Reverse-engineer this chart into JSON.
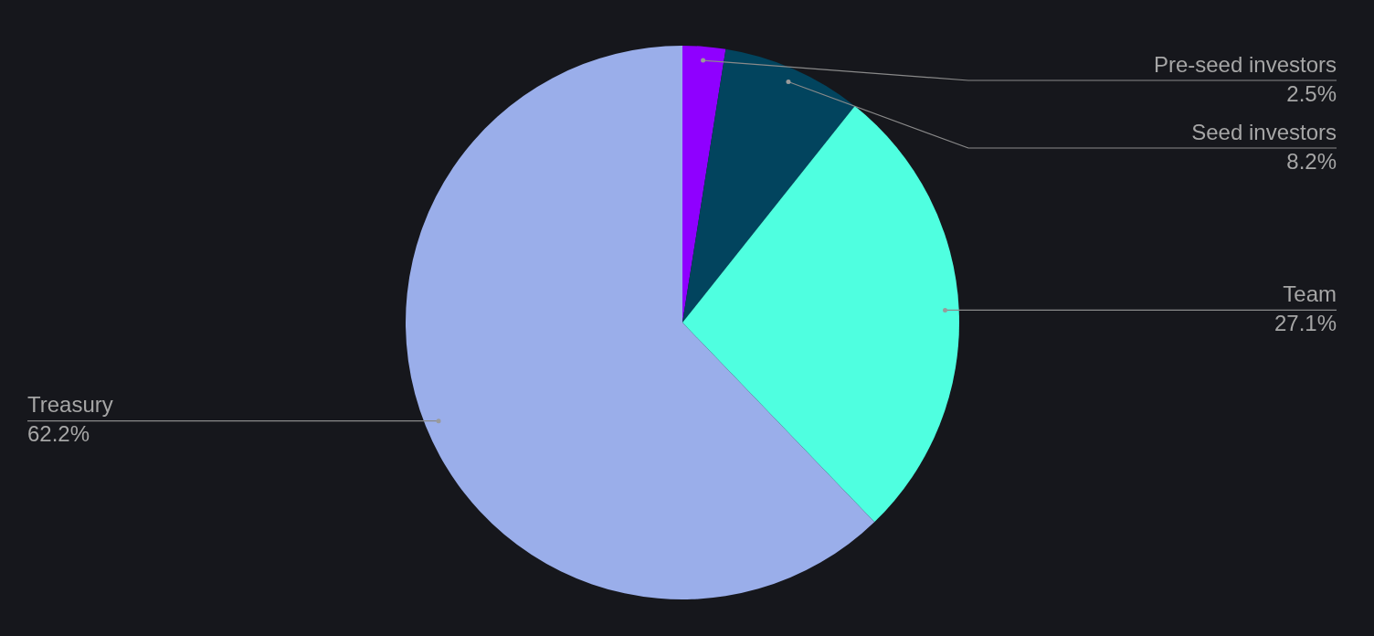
{
  "chart_data": {
    "type": "pie",
    "categories": [
      "Pre-seed investors",
      "Seed investors",
      "Team",
      "Treasury"
    ],
    "values": [
      2.5,
      8.2,
      27.1,
      62.2
    ],
    "value_labels": [
      "2.5%",
      "8.2%",
      "27.1%",
      "62.2%"
    ],
    "colors": [
      "#8f00ff",
      "#02445e",
      "#4fffe0",
      "#9aaeea"
    ],
    "legend": false
  }
}
